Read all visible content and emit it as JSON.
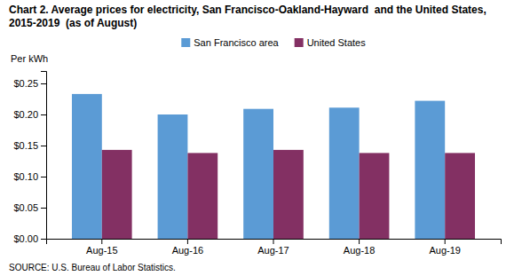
{
  "chart_data": {
    "type": "bar",
    "title": "Chart 2. Average prices for electricity, San Francisco-Oakland-Hayward  and the United States, 2015-2019  (as of August)",
    "ylabel": "Per kWh",
    "source": "SOURCE: U.S. Bureau of Labor Statistics.",
    "categories": [
      "Aug-15",
      "Aug-16",
      "Aug-17",
      "Aug-18",
      "Aug-19"
    ],
    "series": [
      {
        "name": "San Francisco area",
        "color": "#5B9BD5",
        "values": [
          0.233,
          0.2,
          0.209,
          0.211,
          0.222
        ]
      },
      {
        "name": "United States",
        "color": "#833063",
        "values": [
          0.143,
          0.138,
          0.143,
          0.138,
          0.138
        ]
      }
    ],
    "ylim": [
      0.0,
      0.27
    ],
    "yticks": [
      {
        "value": 0.0,
        "label": "$0.00"
      },
      {
        "value": 0.05,
        "label": "$0.05"
      },
      {
        "value": 0.1,
        "label": "$0.10"
      },
      {
        "value": 0.15,
        "label": "$0.15"
      },
      {
        "value": 0.2,
        "label": "$0.20"
      },
      {
        "value": 0.25,
        "label": "$0.25"
      }
    ],
    "grid": false,
    "legend": "top"
  }
}
